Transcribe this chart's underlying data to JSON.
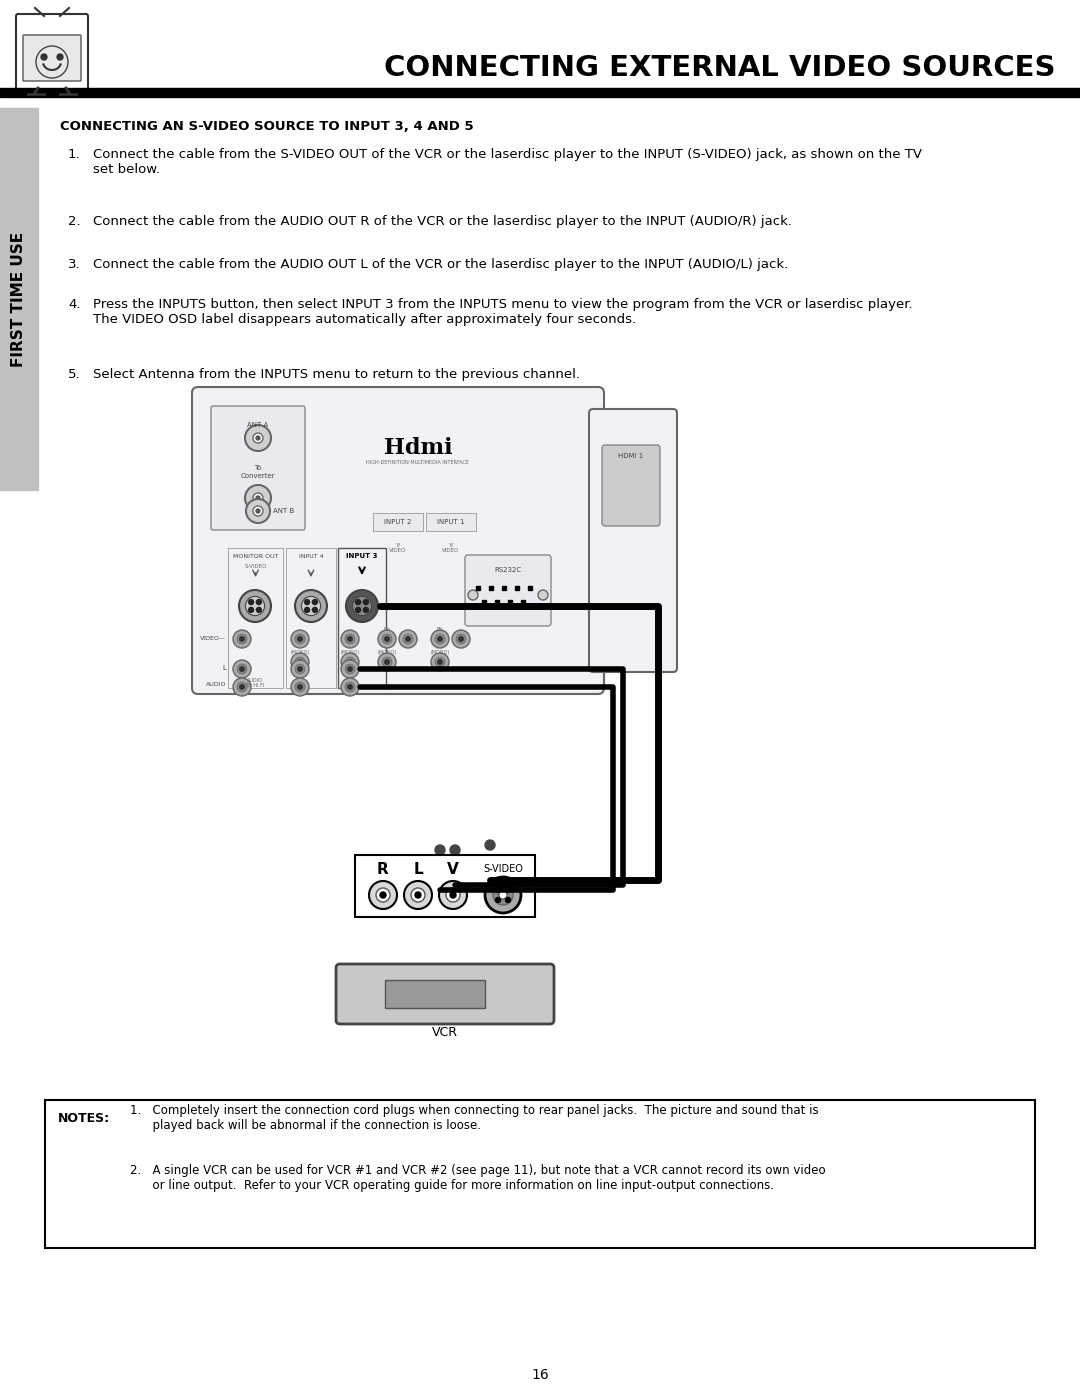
{
  "page_title": "CONNECTING EXTERNAL VIDEO SOURCES",
  "section_title": "CONNECTING AN S-VIDEO SOURCE TO INPUT 3, 4 AND 5",
  "step1": "Connect the cable from the S-VIDEO OUT of the VCR or the laserdisc player to the INPUT (S-VIDEO) jack, as shown on the TV\nset below.",
  "step2": "Connect the cable from the AUDIO OUT R of the VCR or the laserdisc player to the INPUT (AUDIO/R) jack.",
  "step3": "Connect the cable from the AUDIO OUT L of the VCR or the laserdisc player to the INPUT (AUDIO/L) jack.",
  "step4": "Press the INPUTS button, then select INPUT 3 from the INPUTS menu to view the program from the VCR or laserdisc player.\nThe VIDEO OSD label disappears automatically after approximately four seconds.",
  "step5": "Select Antenna from the INPUTS menu to return to the previous channel.",
  "notes_label": "NOTES:",
  "note1": "1.   Completely insert the connection cord plugs when connecting to rear panel jacks.  The picture and sound that is\n      played back will be abnormal if the connection is loose.",
  "note2": "2.   A single VCR can be used for VCR #1 and VCR #2 (see page 11), but note that a VCR cannot record its own video\n      or line output.  Refer to your VCR operating guide for more information on line input-output connections.",
  "side_text": "FIRST TIME USE",
  "page_number": "16",
  "bg_color": "#ffffff"
}
